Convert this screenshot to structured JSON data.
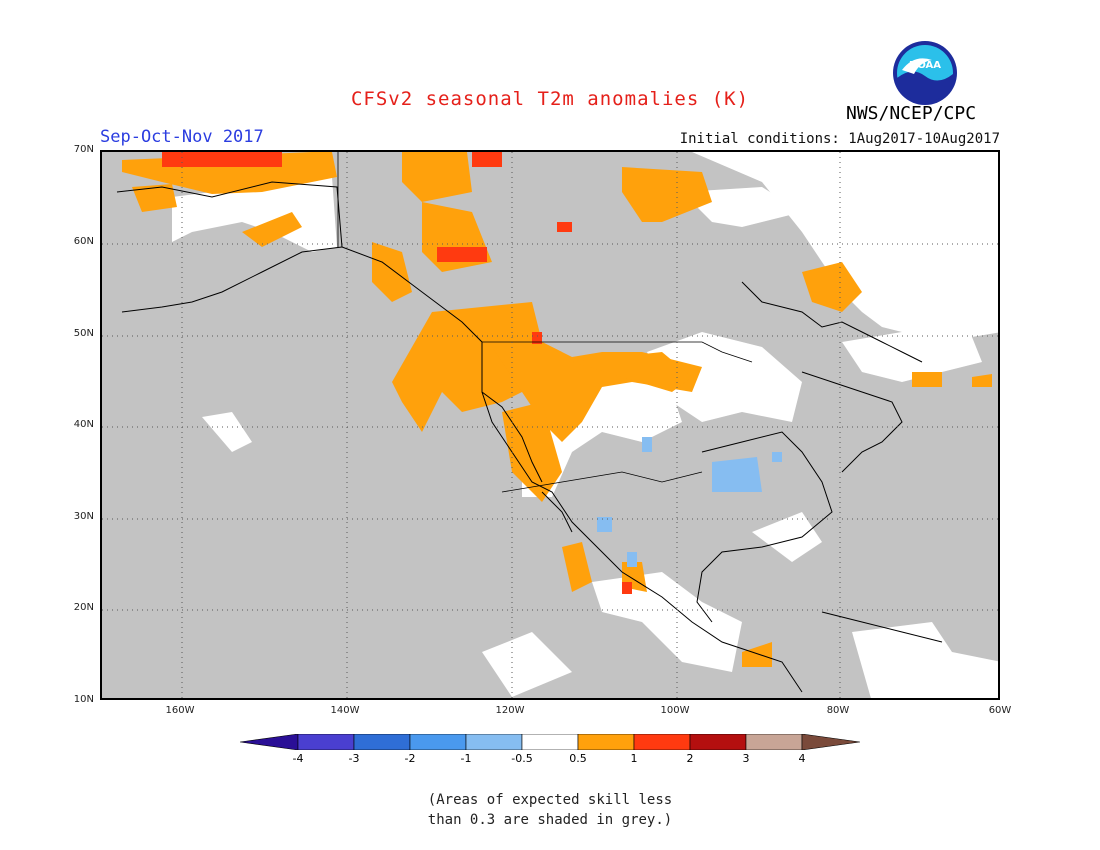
{
  "title": "CFSv2 seasonal T2m anomalies (K)",
  "season": "Sep-Oct-Nov 2017",
  "initial_conditions": "Initial conditions: 1Aug2017-10Aug2017",
  "agency": "NWS/NCEP/CPC",
  "logo_text": "NOAA",
  "lat_labels": [
    "70N",
    "60N",
    "50N",
    "40N",
    "30N",
    "20N",
    "10N"
  ],
  "lon_labels": [
    "160W",
    "140W",
    "120W",
    "100W",
    "80W",
    "60W"
  ],
  "colorbar": {
    "labels": [
      "-4",
      "-3",
      "-2",
      "-1",
      "-0.5",
      "0.5",
      "1",
      "2",
      "3",
      "4"
    ],
    "colors": [
      "#2a0f96",
      "#4a3fd0",
      "#2f6ed6",
      "#4a99ee",
      "#86bdf1",
      "#ffffff",
      "#ffa10c",
      "#ff3a10",
      "#b40f0f",
      "#c8a596",
      "#7a4a3a"
    ]
  },
  "grey_note": [
    "(Areas of expected skill less",
    "than 0.3 are shaded in grey.)"
  ],
  "colors": {
    "skill_grey": "#c3c3c3",
    "warm_1": "#ffa10c",
    "warm_2": "#ff3a10",
    "cool_1": "#86bdf1"
  }
}
